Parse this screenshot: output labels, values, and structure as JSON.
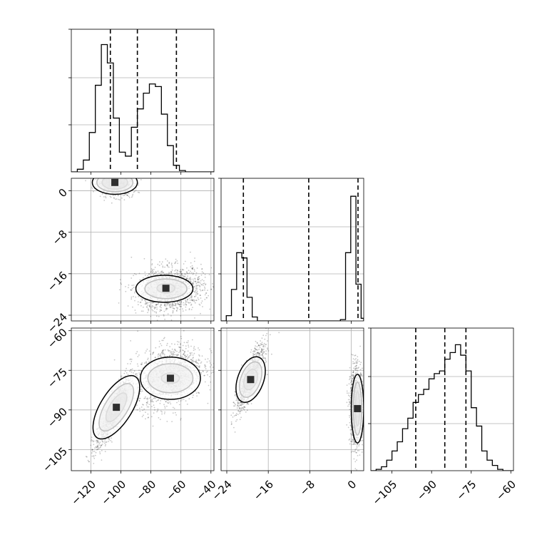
{
  "chart_data": {
    "type": "corner",
    "grid": true,
    "parameters": [
      {
        "ticks": [
          -120,
          -100,
          -80,
          -60,
          -40
        ],
        "lim": [
          -133,
          -38
        ],
        "hist": {
          "edges": [
            -133,
            -129,
            -125,
            -121,
            -117,
            -113,
            -109,
            -105,
            -101,
            -97,
            -93,
            -89,
            -85,
            -81,
            -77,
            -73,
            -69,
            -65,
            -61,
            -57,
            -53,
            -49,
            -45,
            -41,
            -38
          ],
          "counts": [
            0.0,
            0.02,
            0.09,
            0.3,
            0.66,
            0.97,
            0.83,
            0.41,
            0.15,
            0.12,
            0.34,
            0.48,
            0.6,
            0.67,
            0.65,
            0.44,
            0.2,
            0.05,
            0.01,
            0.0,
            0.0,
            0.0,
            0.0,
            0.0
          ],
          "ymax": 1.0
        },
        "quantiles": [
          -107,
          -89,
          -63
        ]
      },
      {
        "ticks": [
          -24,
          -16,
          -8,
          0
        ],
        "lim": [
          -25.1,
          2.4
        ],
        "hist": {
          "edges": [
            -25.1,
            -24.1,
            -23.1,
            -22.1,
            -21.1,
            -20.1,
            -19.1,
            -18.1,
            -17.1,
            -16.1,
            -15.1,
            -14.1,
            -13.1,
            -12.1,
            -11.1,
            -10.1,
            -9.1,
            -8.1,
            -7.1,
            -6.1,
            -5.1,
            -4.1,
            -3.1,
            -2.1,
            -1.1,
            -0.1,
            0.9,
            1.9,
            2.4
          ],
          "counts": [
            0.0,
            0.04,
            0.24,
            0.52,
            0.48,
            0.18,
            0.03,
            0.0,
            0.0,
            0.0,
            0.0,
            0.0,
            0.0,
            0.0,
            0.0,
            0.0,
            0.0,
            0.0,
            0.0,
            0.0,
            0.0,
            0.0,
            0.0,
            0.01,
            0.52,
            0.95,
            0.28,
            0.02
          ],
          "ymax": 1.0
        },
        "quantiles": [
          -20.8,
          -8.2,
          1.3
        ]
      },
      {
        "ticks": [
          -105,
          -90,
          -75,
          -60
        ],
        "lim": [
          -113,
          -59
        ],
        "hist": {
          "edges": [
            -113,
            -111,
            -109,
            -107,
            -105,
            -103,
            -101,
            -99,
            -97,
            -95,
            -93,
            -91,
            -89,
            -87,
            -85,
            -83,
            -81,
            -79,
            -77,
            -75,
            -73,
            -71,
            -69,
            -67,
            -65,
            -63,
            -61,
            -59
          ],
          "counts": [
            0.0,
            0.01,
            0.03,
            0.08,
            0.15,
            0.22,
            0.32,
            0.4,
            0.52,
            0.58,
            0.62,
            0.7,
            0.74,
            0.76,
            0.85,
            0.9,
            0.96,
            0.88,
            0.76,
            0.48,
            0.34,
            0.15,
            0.08,
            0.04,
            0.01,
            0.0,
            0.0
          ],
          "ymax": 1.0
        },
        "quantiles": [
          -96,
          -85,
          -77
        ]
      }
    ],
    "panels_2d": [
      {
        "row": 1,
        "col": 0,
        "clusters": [
          {
            "cx": -104,
            "cy": 1.5,
            "sx": 6,
            "sy": 1.2,
            "rho": -0.15,
            "n": 900
          },
          {
            "cx": -67,
            "cy": -19.0,
            "sx": 11,
            "sy": 2.1,
            "rho": 0.1,
            "n": 1400
          }
        ],
        "contours": [
          {
            "cx": -104,
            "cy": 1.6,
            "rx": 8.5,
            "ry": 1.3,
            "rot": 0.0
          },
          {
            "cx": -104,
            "cy": 1.6,
            "rx": 12.0,
            "ry": 1.8,
            "rot": 0.0
          },
          {
            "cx": -104,
            "cy": 1.6,
            "rx": 15.0,
            "ry": 2.3,
            "rot": 0.0
          },
          {
            "cx": -70,
            "cy": -18.8,
            "rx": 6.0,
            "ry": 0.9,
            "rot": 0.0
          },
          {
            "cx": -70,
            "cy": -18.9,
            "rx": 14.0,
            "ry": 1.9,
            "rot": 0.0
          },
          {
            "cx": -71,
            "cy": -18.9,
            "rx": 19.0,
            "ry": 2.6,
            "rot": 0.0
          }
        ]
      },
      {
        "row": 2,
        "col": 0,
        "clusters": [
          {
            "cx": -105,
            "cy": -91,
            "sx": 6,
            "sy": 7,
            "rho": 0.85,
            "n": 1000
          },
          {
            "cx": -67,
            "cy": -77,
            "sx": 11,
            "sy": 6,
            "rho": 0.3,
            "n": 1400
          }
        ],
        "contours": [
          {
            "cx": -103,
            "cy": -89,
            "rx": 11.0,
            "ry": 2.5,
            "rot": -58
          },
          {
            "cx": -103,
            "cy": -89,
            "rx": 18.0,
            "ry": 4.3,
            "rot": -58
          },
          {
            "cx": -103,
            "cy": -89,
            "rx": 24.0,
            "ry": 6.0,
            "rot": -58
          },
          {
            "cx": -67,
            "cy": -78,
            "rx": 6.0,
            "ry": 2.0,
            "rot": 0.0
          },
          {
            "cx": -67,
            "cy": -78,
            "rx": 15.0,
            "ry": 5.5,
            "rot": 0.0
          },
          {
            "cx": -67,
            "cy": -78,
            "rx": 20.0,
            "ry": 8.0,
            "rot": 0.0
          }
        ]
      },
      {
        "row": 2,
        "col": 1,
        "clusters": [
          {
            "cx": -19.5,
            "cy": -78,
            "sx": 1.3,
            "sy": 6,
            "rho": 0.8,
            "n": 1100
          },
          {
            "cx": 1.0,
            "cy": -89,
            "sx": 0.6,
            "sy": 7,
            "rho": 0.0,
            "n": 1300
          }
        ],
        "contours": [
          {
            "cx": -19.4,
            "cy": -78.5,
            "rx": 1.2,
            "ry": 4.0,
            "rot": 20
          },
          {
            "cx": -19.4,
            "cy": -78.5,
            "rx": 1.9,
            "ry": 7.0,
            "rot": 20
          },
          {
            "cx": -19.4,
            "cy": -78.5,
            "rx": 2.5,
            "ry": 9.0,
            "rot": 20
          },
          {
            "cx": 1.2,
            "cy": -89.5,
            "rx": 0.4,
            "ry": 6.5,
            "rot": 0.0
          },
          {
            "cx": 1.2,
            "cy": -89.5,
            "rx": 0.8,
            "ry": 10.0,
            "rot": 0.0
          },
          {
            "cx": 1.2,
            "cy": -89.5,
            "rx": 1.2,
            "ry": 13.0,
            "rot": 0.0
          }
        ]
      }
    ]
  }
}
